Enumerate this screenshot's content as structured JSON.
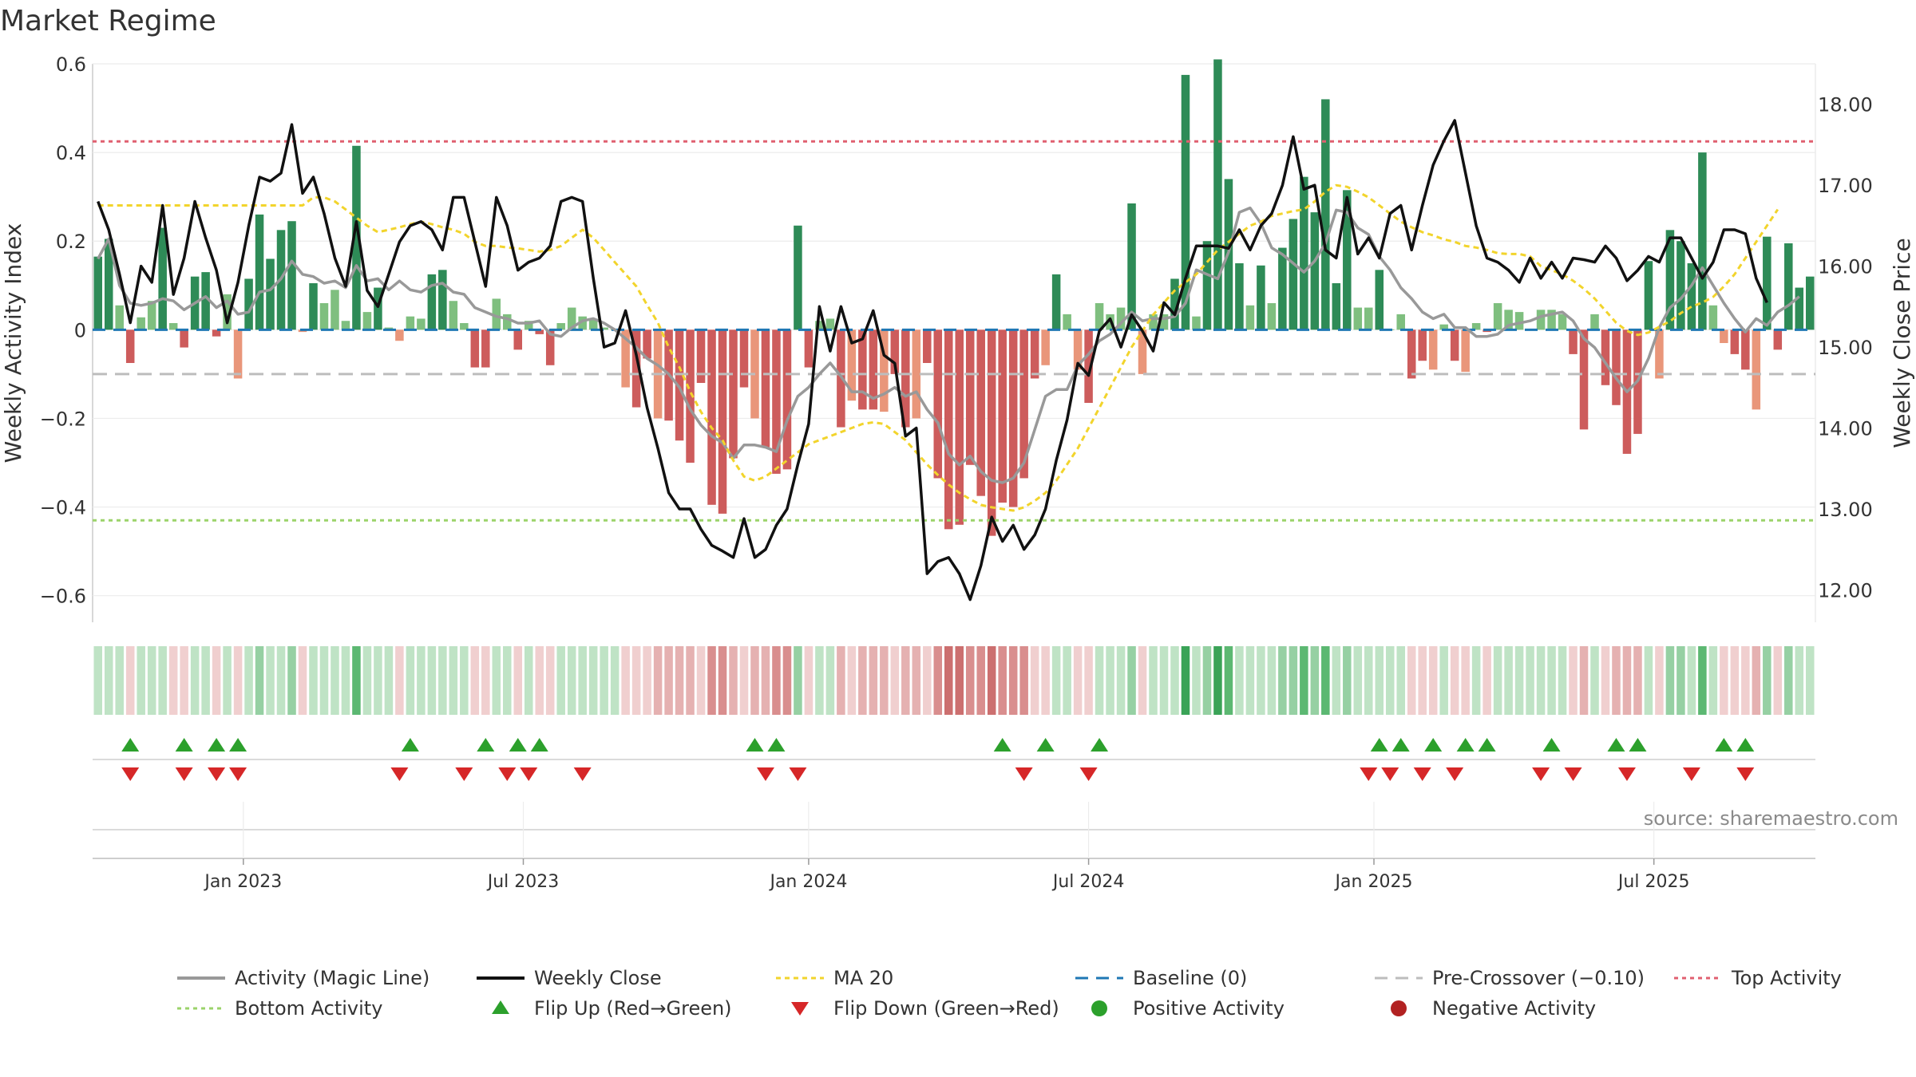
{
  "title": "Market Regime",
  "source_label": "source: sharemaestro.com",
  "chart_data": {
    "type": "bar+line",
    "title": "Market Regime",
    "ylabel_left": "Weekly Activity Index",
    "ylabel_right": "Weekly Close Price",
    "ylim_left": [
      -0.66,
      0.6
    ],
    "ylim_right": [
      11.6,
      18.5
    ],
    "left_ticks": [
      0.6,
      0.4,
      0.2,
      0,
      -0.2,
      -0.4,
      -0.6
    ],
    "left_tick_labels": [
      "0.6",
      "0.4",
      "0.2",
      "0",
      "−0.2",
      "−0.4",
      "−0.6"
    ],
    "right_ticks": [
      18,
      17,
      16,
      15,
      14,
      13,
      12
    ],
    "right_tick_labels": [
      "18.00",
      "17.00",
      "16.00",
      "15.00",
      "14.00",
      "13.00",
      "12.00"
    ],
    "x_ticks": [
      {
        "label": "Jan 2023",
        "week": 14
      },
      {
        "label": "Jul 2023",
        "week": 40
      },
      {
        "label": "Jan 2024",
        "week": 66.5
      },
      {
        "label": "Jul 2024",
        "week": 92.5
      },
      {
        "label": "Jan 2025",
        "week": 119
      },
      {
        "label": "Jul 2025",
        "week": 145
      }
    ],
    "grid": true,
    "legend_position": "bottom",
    "reference_lines": {
      "top_activity": 0.425,
      "bottom_activity": -0.43,
      "pre_crossover": -0.1,
      "baseline": 0
    },
    "activity": [
      0.165,
      0.205,
      0.055,
      -0.075,
      0.028,
      0.065,
      0.23,
      0.015,
      -0.04,
      0.12,
      0.13,
      -0.015,
      0.08,
      -0.11,
      0.115,
      0.26,
      0.16,
      0.225,
      0.245,
      -0.005,
      0.105,
      0.06,
      0.09,
      0.02,
      0.415,
      0.04,
      0.095,
      0.005,
      -0.025,
      0.03,
      0.025,
      0.125,
      0.135,
      0.065,
      0.015,
      -0.085,
      -0.085,
      0.07,
      0.035,
      -0.045,
      0.02,
      -0.01,
      -0.08,
      0.015,
      0.05,
      0.03,
      0.025,
      0.005,
      0.001,
      -0.13,
      -0.175,
      -0.065,
      -0.2,
      -0.205,
      -0.25,
      -0.3,
      -0.12,
      -0.395,
      -0.415,
      -0.29,
      -0.13,
      -0.2,
      -0.265,
      -0.325,
      -0.315,
      0.235,
      -0.085,
      0.02,
      0.025,
      -0.22,
      -0.16,
      -0.18,
      -0.18,
      -0.185,
      -0.1,
      -0.22,
      -0.2,
      -0.075,
      -0.335,
      -0.45,
      -0.44,
      -0.305,
      -0.375,
      -0.465,
      -0.39,
      -0.4,
      -0.335,
      -0.11,
      -0.08,
      0.125,
      0.035,
      -0.09,
      -0.165,
      0.06,
      0.035,
      0.05,
      0.285,
      -0.1,
      0.035,
      0.035,
      0.115,
      0.575,
      0.03,
      0.2,
      0.61,
      0.34,
      0.15,
      0.055,
      0.145,
      0.06,
      0.185,
      0.25,
      0.345,
      0.265,
      0.52,
      0.105,
      0.315,
      0.05,
      0.05,
      0.135,
      0.001,
      0.035,
      -0.11,
      -0.07,
      -0.09,
      0.012,
      -0.07,
      -0.095,
      0.015,
      -0.005,
      0.06,
      0.045,
      0.04,
      0.001,
      0.045,
      0.045,
      0.035,
      -0.055,
      -0.225,
      0.035,
      -0.125,
      -0.17,
      -0.28,
      -0.235,
      0.155,
      -0.11,
      0.225,
      0.2,
      0.15,
      0.4,
      0.055,
      -0.03,
      -0.055,
      -0.09,
      -0.18,
      0.21,
      -0.045,
      0.195,
      0.095,
      0.12
    ],
    "magic_line": [
      0.16,
      0.205,
      0.1,
      0.06,
      0.055,
      0.06,
      0.07,
      0.065,
      0.045,
      0.06,
      0.075,
      0.05,
      0.065,
      0.035,
      0.04,
      0.085,
      0.09,
      0.115,
      0.155,
      0.125,
      0.12,
      0.105,
      0.11,
      0.095,
      0.145,
      0.11,
      0.115,
      0.09,
      0.11,
      0.09,
      0.085,
      0.1,
      0.105,
      0.085,
      0.08,
      0.05,
      0.04,
      0.03,
      0.025,
      0.015,
      0.015,
      0.02,
      -0.01,
      -0.015,
      0.005,
      0.02,
      0.025,
      0.015,
      0.0,
      -0.02,
      -0.04,
      -0.065,
      -0.08,
      -0.1,
      -0.13,
      -0.18,
      -0.215,
      -0.24,
      -0.255,
      -0.29,
      -0.26,
      -0.26,
      -0.265,
      -0.275,
      -0.205,
      -0.15,
      -0.13,
      -0.1,
      -0.075,
      -0.105,
      -0.14,
      -0.14,
      -0.155,
      -0.145,
      -0.13,
      -0.15,
      -0.14,
      -0.18,
      -0.21,
      -0.28,
      -0.305,
      -0.285,
      -0.32,
      -0.34,
      -0.345,
      -0.335,
      -0.3,
      -0.225,
      -0.15,
      -0.135,
      -0.135,
      -0.08,
      -0.055,
      -0.025,
      -0.01,
      0.015,
      0.04,
      0.02,
      0.025,
      0.025,
      0.03,
      0.06,
      0.135,
      0.125,
      0.115,
      0.175,
      0.265,
      0.275,
      0.24,
      0.185,
      0.17,
      0.15,
      0.13,
      0.155,
      0.195,
      0.27,
      0.265,
      0.23,
      0.215,
      0.165,
      0.135,
      0.095,
      0.07,
      0.04,
      0.025,
      0.035,
      0.005,
      0.005,
      -0.015,
      -0.015,
      -0.01,
      0.01,
      0.015,
      0.02,
      0.03,
      0.035,
      0.04,
      0.02,
      -0.02,
      -0.04,
      -0.075,
      -0.11,
      -0.14,
      -0.115,
      -0.065,
      0.005,
      0.05,
      0.07,
      0.1,
      0.14,
      0.1,
      0.06,
      0.025,
      -0.005,
      0.025,
      0.01,
      0.04,
      0.055,
      0.075
    ],
    "ma20": [
      16.75,
      16.75,
      16.75,
      16.75,
      16.75,
      16.75,
      16.75,
      16.75,
      16.75,
      16.75,
      16.75,
      16.75,
      16.75,
      16.75,
      16.75,
      16.75,
      16.75,
      16.75,
      16.75,
      16.75,
      16.85,
      16.85,
      16.8,
      16.7,
      16.6,
      16.5,
      16.42,
      16.45,
      16.48,
      16.52,
      16.55,
      16.52,
      16.48,
      16.45,
      16.4,
      16.3,
      16.25,
      16.25,
      16.23,
      16.22,
      16.2,
      16.18,
      16.2,
      16.25,
      16.35,
      16.45,
      16.35,
      16.2,
      16.05,
      15.9,
      15.75,
      15.52,
      15.3,
      15.0,
      14.75,
      14.45,
      14.2,
      14.0,
      13.85,
      13.6,
      13.4,
      13.35,
      13.4,
      13.5,
      13.6,
      13.7,
      13.8,
      13.85,
      13.9,
      13.95,
      14.0,
      14.05,
      14.07,
      14.05,
      13.95,
      13.85,
      13.7,
      13.55,
      13.42,
      13.3,
      13.2,
      13.12,
      13.05,
      13.02,
      13.0,
      12.98,
      13.02,
      13.1,
      13.2,
      13.35,
      13.55,
      13.75,
      14.0,
      14.25,
      14.5,
      14.75,
      15.0,
      15.2,
      15.4,
      15.55,
      15.7,
      15.8,
      15.9,
      16.05,
      16.2,
      16.3,
      16.4,
      16.5,
      16.55,
      16.62,
      16.65,
      16.68,
      16.7,
      16.8,
      16.92,
      17.0,
      16.98,
      16.92,
      16.85,
      16.75,
      16.65,
      16.55,
      16.48,
      16.42,
      16.38,
      16.33,
      16.3,
      16.25,
      16.23,
      16.2,
      16.16,
      16.15,
      16.15,
      16.12,
      16.0,
      15.95,
      15.9,
      15.82,
      15.72,
      15.6,
      15.45,
      15.3,
      15.2,
      15.15,
      15.18,
      15.25,
      15.32,
      15.42,
      15.5,
      15.55,
      15.62,
      15.75,
      15.9,
      16.1,
      16.3,
      16.5,
      16.7
    ],
    "weekly_close": [
      16.8,
      16.45,
      15.9,
      15.3,
      16.0,
      15.8,
      16.75,
      15.65,
      16.1,
      16.8,
      16.35,
      15.95,
      15.3,
      15.8,
      16.5,
      17.1,
      17.05,
      17.15,
      17.75,
      16.9,
      17.1,
      16.65,
      16.1,
      15.75,
      16.55,
      15.7,
      15.5,
      15.9,
      16.3,
      16.5,
      16.55,
      16.45,
      16.2,
      16.85,
      16.85,
      16.3,
      15.75,
      16.85,
      16.5,
      15.95,
      16.05,
      16.1,
      16.25,
      16.8,
      16.85,
      16.8,
      15.85,
      15.0,
      15.05,
      15.45,
      14.9,
      14.25,
      13.75,
      13.2,
      13.0,
      13.0,
      12.75,
      12.55,
      12.48,
      12.4,
      12.88,
      12.4,
      12.5,
      12.8,
      13.0,
      13.55,
      14.05,
      15.5,
      14.95,
      15.5,
      15.05,
      15.1,
      15.45,
      14.9,
      14.8,
      13.9,
      14.0,
      12.2,
      12.35,
      12.4,
      12.2,
      11.88,
      12.3,
      12.9,
      12.6,
      12.8,
      12.5,
      12.68,
      13.0,
      13.6,
      14.1,
      14.8,
      14.65,
      15.2,
      15.35,
      15.0,
      15.4,
      15.2,
      14.95,
      15.55,
      15.4,
      15.85,
      16.25,
      16.25,
      16.25,
      16.22,
      16.45,
      16.2,
      16.5,
      16.65,
      17.0,
      17.6,
      16.95,
      17.0,
      16.2,
      16.1,
      16.85,
      16.15,
      16.35,
      16.1,
      16.65,
      16.75,
      16.2,
      16.75,
      17.25,
      17.55,
      17.8,
      17.15,
      16.5,
      16.1,
      16.05,
      15.95,
      15.8,
      16.1,
      15.85,
      16.05,
      15.85,
      16.1,
      16.08,
      16.05,
      16.25,
      16.1,
      15.82,
      15.95,
      16.12,
      16.05,
      16.35,
      16.35,
      16.1,
      15.85,
      16.05,
      16.45,
      16.45,
      16.4,
      15.85,
      15.55
    ],
    "ribbon_levels": [
      1,
      1,
      1,
      -1,
      1,
      1,
      1,
      -1,
      -1,
      1,
      1,
      -1,
      1,
      -1,
      1,
      2,
      1,
      1,
      2,
      -1,
      1,
      1,
      1,
      1,
      3,
      1,
      1,
      1,
      -1,
      1,
      1,
      1,
      1,
      1,
      1,
      -1,
      -1,
      1,
      1,
      -1,
      1,
      -1,
      -1,
      1,
      1,
      1,
      1,
      1,
      1,
      -1,
      -1,
      -1,
      -2,
      -2,
      -2,
      -2,
      -1,
      -3,
      -3,
      -2,
      -1,
      -2,
      -2,
      -3,
      -3,
      2,
      -1,
      1,
      1,
      -2,
      -1,
      -2,
      -2,
      -2,
      -1,
      -2,
      -2,
      -1,
      -3,
      -4,
      -4,
      -3,
      -3,
      -4,
      -3,
      -3,
      -3,
      -1,
      -1,
      1,
      1,
      -1,
      -1,
      1,
      1,
      1,
      2,
      -1,
      1,
      1,
      1,
      4,
      1,
      2,
      4,
      3,
      1,
      1,
      1,
      1,
      2,
      2,
      3,
      2,
      3,
      1,
      2,
      1,
      1,
      1,
      1,
      1,
      -1,
      -1,
      -1,
      1,
      -1,
      -1,
      1,
      -1,
      1,
      1,
      1,
      1,
      1,
      1,
      1,
      -1,
      -2,
      1,
      -1,
      -2,
      -2,
      -2,
      1,
      -1,
      2,
      2,
      1,
      3,
      1,
      -1,
      -1,
      -1,
      -2,
      2,
      -1,
      2,
      1,
      1
    ],
    "flip_up_weeks": [
      3,
      8,
      11,
      13,
      29,
      36,
      39,
      41,
      61,
      63,
      84,
      88,
      93,
      119,
      121,
      124,
      127,
      129,
      135,
      141,
      143,
      151,
      153
    ],
    "flip_down_weeks": [
      3,
      8,
      11,
      13,
      28,
      34,
      38,
      40,
      45,
      62,
      65,
      86,
      92,
      118,
      120,
      123,
      126,
      134,
      137,
      142,
      148,
      153
    ],
    "legend": [
      {
        "key": "magic",
        "label": "Activity (Magic Line)"
      },
      {
        "key": "close",
        "label": "Weekly Close"
      },
      {
        "key": "ma",
        "label": "MA 20"
      },
      {
        "key": "baseline",
        "label": "Baseline (0)"
      },
      {
        "key": "precross",
        "label": "Pre-Crossover (−0.10)"
      },
      {
        "key": "top",
        "label": "Top Activity"
      },
      {
        "key": "bottom",
        "label": "Bottom Activity"
      },
      {
        "key": "flipup",
        "label": "Flip Up (Red→Green)"
      },
      {
        "key": "flipdown",
        "label": "Flip Down (Green→Red)"
      },
      {
        "key": "pos",
        "label": "Positive Activity"
      },
      {
        "key": "neg",
        "label": "Negative Activity"
      }
    ],
    "colors": {
      "pos_strong": "#2e8b57",
      "pos_light": "#7fbf7f",
      "neg_strong": "#cd5c5c",
      "neg_light": "#e9967a",
      "magic_line": "#999999",
      "weekly_close": "#111111",
      "ma20": "#f2d42c",
      "baseline": "#1f77b4",
      "pre_crossover": "#bdbdbd",
      "top_activity": "#e06070",
      "bottom_activity": "#9bd36a",
      "flip_up": "#2ca02c",
      "flip_down": "#d62728",
      "positive_dot": "#2ca02c",
      "negative_dot": "#b22222"
    }
  }
}
